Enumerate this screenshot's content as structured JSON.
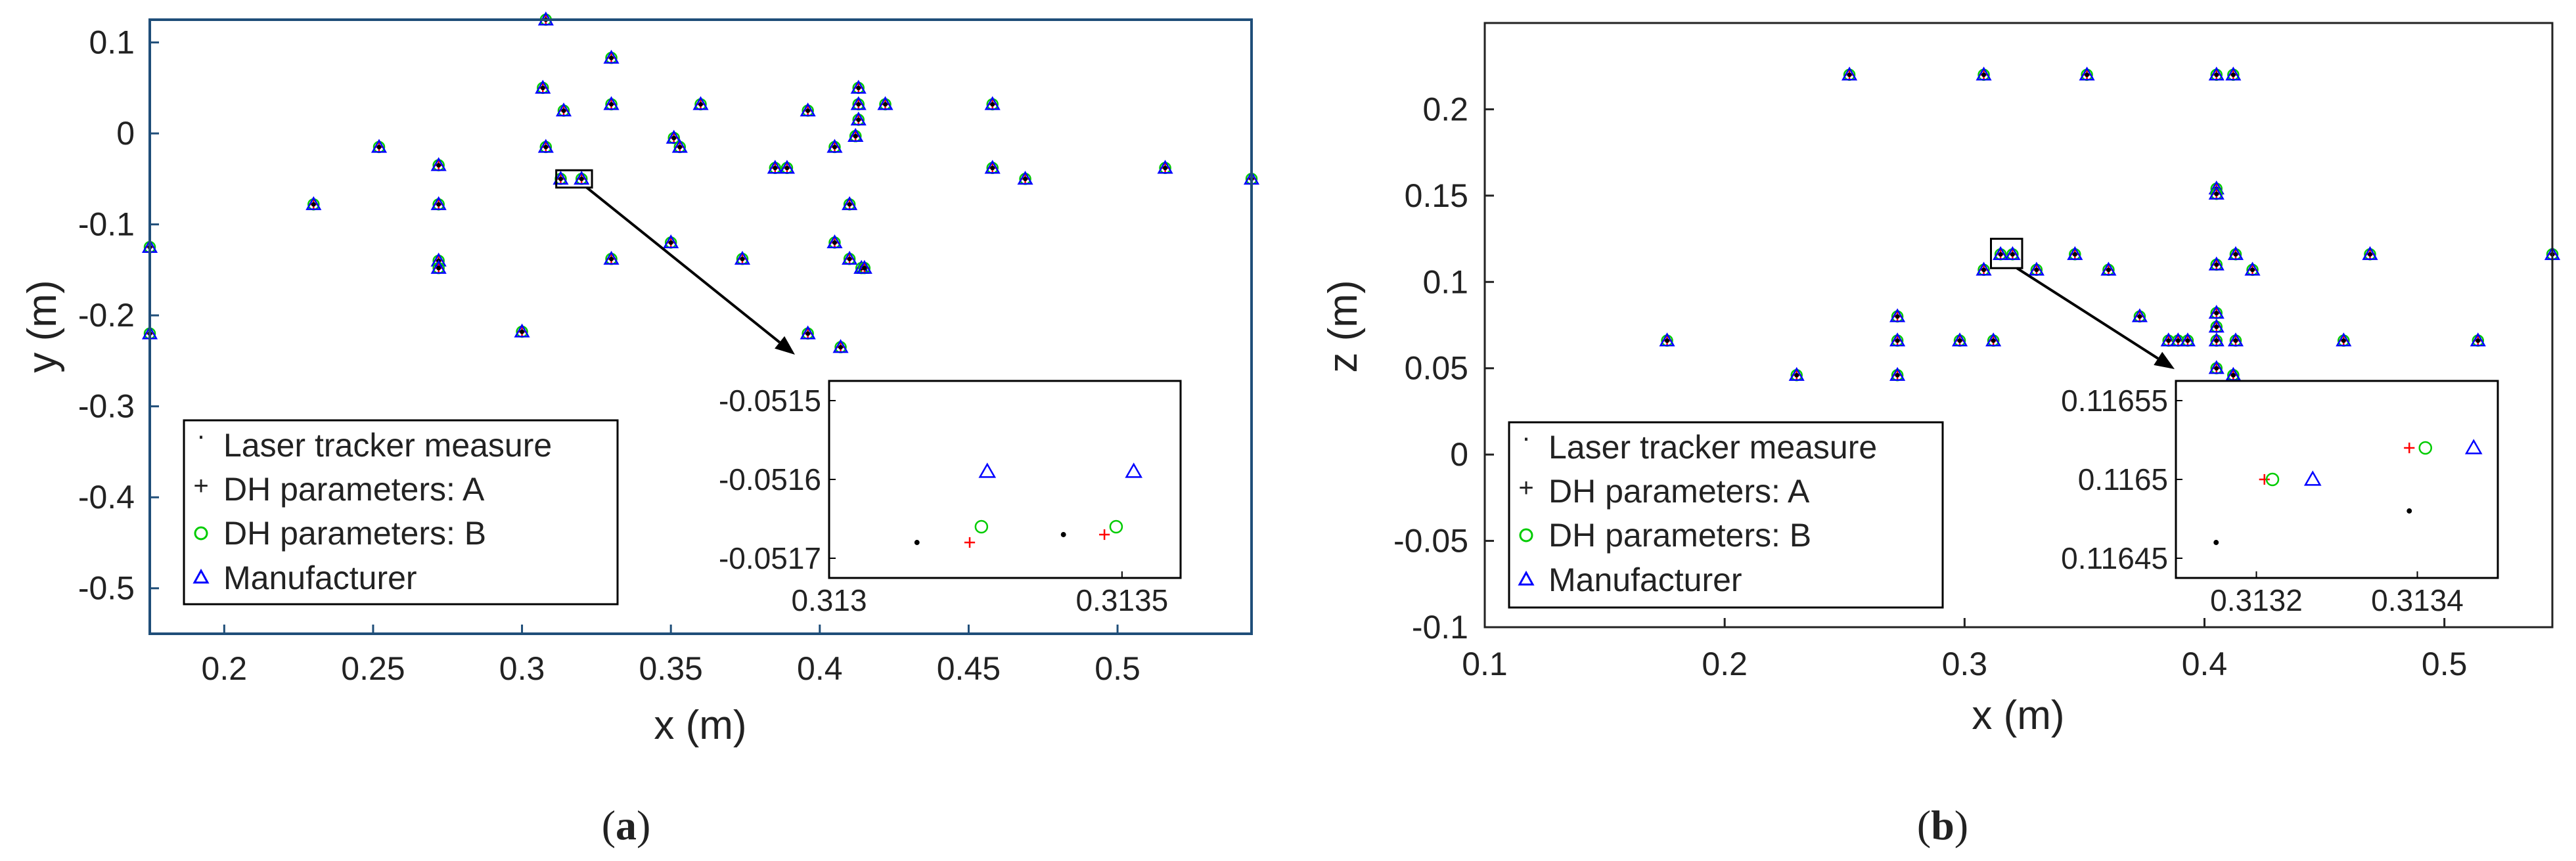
{
  "figure": {
    "captions": [
      {
        "open": "(",
        "letter": "a",
        "close": ")"
      },
      {
        "open": "(",
        "letter": "b",
        "close": ")"
      }
    ]
  },
  "chart_data": [
    {
      "type": "scatter",
      "title": "",
      "xlabel": "x (m)",
      "ylabel": "y (m)",
      "xlim": [
        0.175,
        0.545
      ],
      "ylim": [
        -0.55,
        0.125
      ],
      "xticks": [
        0.2,
        0.25,
        0.3,
        0.35,
        0.4,
        0.45,
        0.5
      ],
      "yticks": [
        0.1,
        0,
        -0.1,
        -0.2,
        -0.3,
        -0.4,
        -0.5
      ],
      "axis_color": "#1f4e79",
      "grid": false,
      "legend": {
        "placement": "bottom-left",
        "entries": [
          "Laser tracker measure",
          "DH parameters: A",
          "DH parameters: B",
          "Manufacturer"
        ]
      },
      "series_colors": [
        "#000000",
        "#ff0000",
        "#00cc00",
        "#0000ff"
      ],
      "x": [
        0.175,
        0.175,
        0.23,
        0.252,
        0.272,
        0.272,
        0.272,
        0.272,
        0.3,
        0.307,
        0.308,
        0.313,
        0.314,
        0.32,
        0.33,
        0.33,
        0.33,
        0.35,
        0.351,
        0.353,
        0.36,
        0.374,
        0.385,
        0.389,
        0.396,
        0.396,
        0.405,
        0.405,
        0.407,
        0.41,
        0.41,
        0.412,
        0.412,
        0.413,
        0.413,
        0.413,
        0.414,
        0.415,
        0.422,
        0.458,
        0.458,
        0.469,
        0.516,
        0.545,
        0.308
      ],
      "y": [
        -0.125,
        -0.22,
        -0.078,
        -0.015,
        -0.035,
        -0.078,
        -0.14,
        -0.148,
        -0.218,
        0.05,
        -0.015,
        -0.05,
        0.025,
        -0.05,
        0.083,
        0.032,
        -0.138,
        -0.12,
        -0.005,
        -0.015,
        0.032,
        -0.138,
        -0.038,
        -0.038,
        0.025,
        -0.22,
        -0.015,
        -0.12,
        -0.235,
        -0.078,
        -0.138,
        -0.003,
        -0.003,
        0.05,
        0.032,
        0.015,
        -0.148,
        -0.148,
        0.032,
        0.032,
        -0.038,
        -0.05,
        -0.038,
        -0.05,
        0.125
      ],
      "zoom_box": {
        "x": [
          0.3115,
          0.3235
        ],
        "y": [
          -0.0595,
          -0.0405
        ]
      },
      "inset": {
        "xlim": [
          0.313,
          0.3136
        ],
        "ylim": [
          -0.0517,
          -0.0515
        ],
        "xtick_labels": [
          "0.313",
          "0.3135"
        ],
        "xtick_values": [
          0.313,
          0.3135
        ],
        "ytick_labels": [
          "-0.0515",
          "-0.0516",
          "-0.0517"
        ],
        "ytick_values": [
          -0.0515,
          -0.0516,
          -0.0517
        ],
        "points": [
          {
            "series": 0,
            "x": 0.31315,
            "y": -0.05168
          },
          {
            "series": 0,
            "x": 0.3134,
            "y": -0.05167
          },
          {
            "series": 1,
            "x": 0.31324,
            "y": -0.05168
          },
          {
            "series": 1,
            "x": 0.31347,
            "y": -0.05167
          },
          {
            "series": 2,
            "x": 0.31326,
            "y": -0.05166
          },
          {
            "series": 2,
            "x": 0.31349,
            "y": -0.05166
          },
          {
            "series": 3,
            "x": 0.31327,
            "y": -0.05159
          },
          {
            "series": 3,
            "x": 0.31352,
            "y": -0.05159
          }
        ]
      }
    },
    {
      "type": "scatter",
      "title": "",
      "xlabel": "x (m)",
      "ylabel": "z (m)",
      "xlim": [
        0.1,
        0.545
      ],
      "ylim": [
        -0.1,
        0.25
      ],
      "xticks": [
        0.1,
        0.2,
        0.3,
        0.4,
        0.5
      ],
      "yticks": [
        0.2,
        0.15,
        0.1,
        0.05,
        0,
        -0.05,
        -0.1
      ],
      "axis_color": "#222222",
      "grid": false,
      "legend": {
        "placement": "bottom-left",
        "entries": [
          "Laser tracker measure",
          "DH parameters: A",
          "DH parameters: B",
          "Manufacturer"
        ]
      },
      "series_colors": [
        "#000000",
        "#ff0000",
        "#00cc00",
        "#0000ff"
      ],
      "x": [
        0.176,
        0.23,
        0.252,
        0.272,
        0.272,
        0.272,
        0.298,
        0.308,
        0.308,
        0.312,
        0.315,
        0.32,
        0.33,
        0.346,
        0.351,
        0.36,
        0.373,
        0.385,
        0.389,
        0.393,
        0.405,
        0.405,
        0.405,
        0.405,
        0.405,
        0.405,
        0.405,
        0.405,
        0.412,
        0.412,
        0.412,
        0.413,
        0.413,
        0.42,
        0.458,
        0.469,
        0.514,
        0.545
      ],
      "y": [
        0.066,
        0.046,
        0.22,
        0.08,
        0.066,
        0.046,
        0.066,
        0.22,
        0.107,
        0.066,
        0.116,
        0.116,
        0.107,
        0.116,
        0.22,
        0.107,
        0.08,
        0.066,
        0.066,
        0.066,
        0.22,
        0.154,
        0.151,
        0.11,
        0.082,
        0.074,
        0.066,
        0.05,
        0.22,
        0.046,
        0.046,
        0.066,
        0.116,
        0.107,
        0.066,
        0.116,
        0.066,
        0.116
      ],
      "zoom_box": {
        "x": [
          0.311,
          0.324
        ],
        "y": [
          0.108,
          0.125
        ]
      },
      "inset": {
        "xlim": [
          0.3131,
          0.3135
        ],
        "ylim": [
          0.11645,
          0.11655
        ],
        "xtick_labels": [
          "0.3132",
          "0.3134"
        ],
        "xtick_values": [
          0.3132,
          0.3134
        ],
        "ytick_labels": [
          "0.11655",
          "0.1165",
          "0.11645"
        ],
        "ytick_values": [
          0.11655,
          0.1165,
          0.11645
        ],
        "points": [
          {
            "series": 0,
            "x": 0.31315,
            "y": 0.11646
          },
          {
            "series": 0,
            "x": 0.31339,
            "y": 0.11648
          },
          {
            "series": 1,
            "x": 0.31321,
            "y": 0.1165
          },
          {
            "series": 1,
            "x": 0.31339,
            "y": 0.11652
          },
          {
            "series": 2,
            "x": 0.31322,
            "y": 0.1165
          },
          {
            "series": 2,
            "x": 0.31341,
            "y": 0.11652
          },
          {
            "series": 3,
            "x": 0.31327,
            "y": 0.1165
          },
          {
            "series": 3,
            "x": 0.31347,
            "y": 0.11652
          }
        ]
      }
    }
  ]
}
